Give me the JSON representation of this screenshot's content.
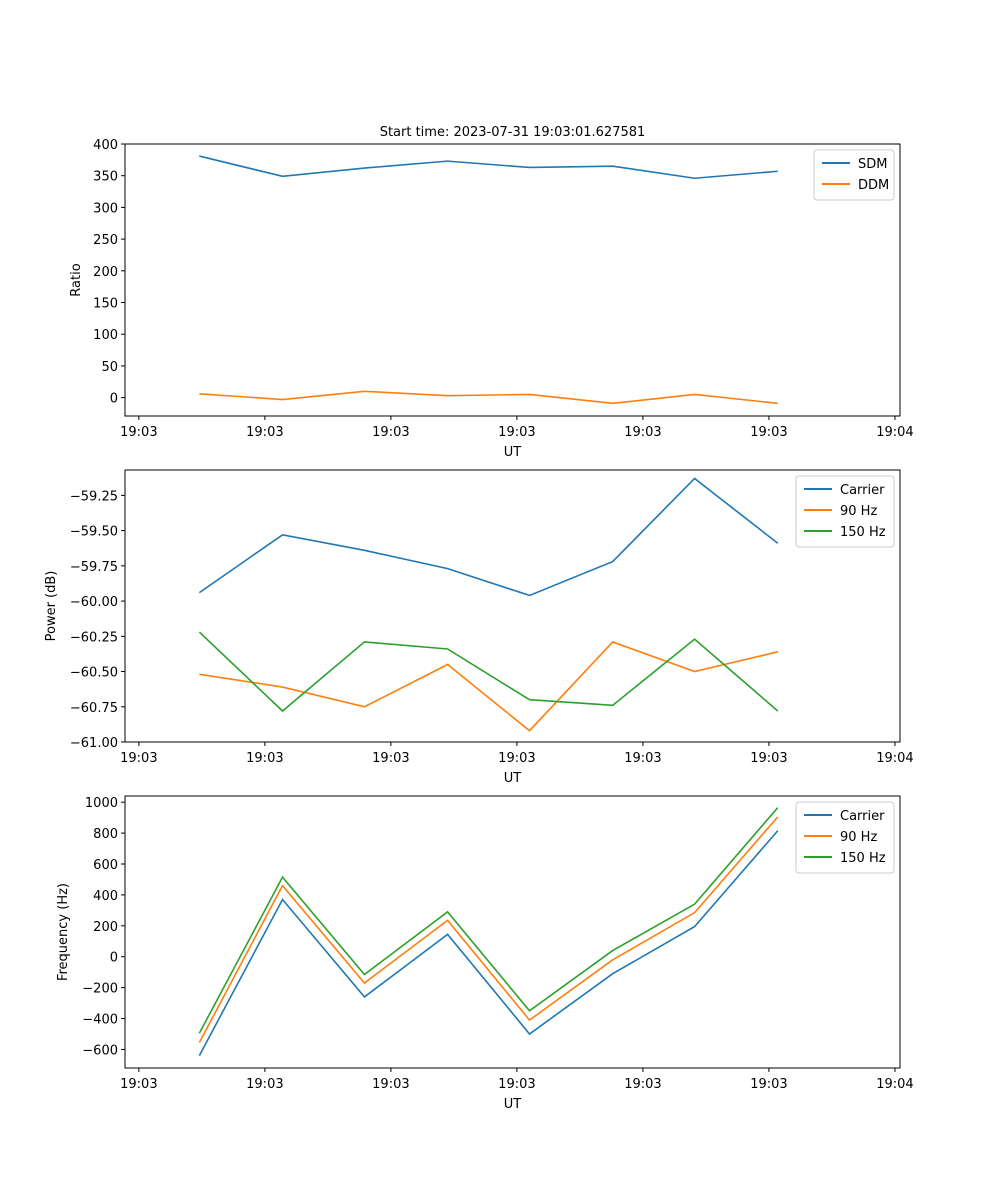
{
  "chart_data": [
    {
      "type": "line",
      "title": "Start time: 2023-07-31 19:03:01.627581",
      "xlabel": "UT",
      "ylabel": "Ratio",
      "x_seconds": [
        4.8,
        11.4,
        17.9,
        24.5,
        31.0,
        37.6,
        44.1,
        50.7
      ],
      "xlim": [
        -1.1,
        60.4
      ],
      "ylim": [
        -29,
        400
      ],
      "xticks": [
        0,
        10,
        20,
        30,
        40,
        50,
        60
      ],
      "xtick_labels": [
        "19:03",
        "19:03",
        "19:03",
        "19:03",
        "19:03",
        "19:03",
        "19:04"
      ],
      "yticks": [
        0,
        50,
        100,
        150,
        200,
        250,
        300,
        350,
        400
      ],
      "ytick_labels": [
        "0",
        "50",
        "100",
        "150",
        "200",
        "250",
        "300",
        "350",
        "400"
      ],
      "legend": "top-right",
      "series": [
        {
          "name": "SDM",
          "color": "#1f77b4",
          "values": [
            381,
            349,
            362,
            373,
            363,
            365,
            346,
            357
          ]
        },
        {
          "name": "DDM",
          "color": "#ff7f0e",
          "values": [
            6,
            -3,
            10,
            3,
            5,
            -9,
            5,
            -9
          ]
        }
      ]
    },
    {
      "type": "line",
      "title": "",
      "xlabel": "UT",
      "ylabel": "Power (dB)",
      "x_seconds": [
        4.8,
        11.4,
        17.9,
        24.5,
        31.0,
        37.6,
        44.1,
        50.7
      ],
      "xlim": [
        -1.1,
        60.4
      ],
      "ylim": [
        -61.0,
        -59.07
      ],
      "xticks": [
        0,
        10,
        20,
        30,
        40,
        50,
        60
      ],
      "xtick_labels": [
        "19:03",
        "19:03",
        "19:03",
        "19:03",
        "19:03",
        "19:03",
        "19:04"
      ],
      "yticks": [
        -61.0,
        -60.75,
        -60.5,
        -60.25,
        -60.0,
        -59.75,
        -59.5,
        -59.25
      ],
      "ytick_labels": [
        "−61.00",
        "−60.75",
        "−60.50",
        "−60.25",
        "−60.00",
        "−59.75",
        "−59.50",
        "−59.25"
      ],
      "legend": "top-right",
      "series": [
        {
          "name": "Carrier",
          "color": "#1f77b4",
          "values": [
            -59.94,
            -59.53,
            -59.64,
            -59.77,
            -59.96,
            -59.72,
            -59.13,
            -59.59
          ]
        },
        {
          "name": "90 Hz",
          "color": "#ff7f0e",
          "values": [
            -60.52,
            -60.61,
            -60.75,
            -60.45,
            -60.92,
            -60.29,
            -60.5,
            -60.36
          ]
        },
        {
          "name": "150 Hz",
          "color": "#2ca02c",
          "values": [
            -60.22,
            -60.78,
            -60.29,
            -60.34,
            -60.7,
            -60.74,
            -60.27,
            -60.78
          ]
        }
      ]
    },
    {
      "type": "line",
      "title": "",
      "xlabel": "UT",
      "ylabel": "Frequency (Hz)",
      "x_seconds": [
        4.8,
        11.4,
        17.9,
        24.5,
        31.0,
        37.6,
        44.1,
        50.7
      ],
      "xlim": [
        -1.1,
        60.4
      ],
      "ylim": [
        -720,
        1040
      ],
      "xticks": [
        0,
        10,
        20,
        30,
        40,
        50,
        60
      ],
      "xtick_labels": [
        "19:03",
        "19:03",
        "19:03",
        "19:03",
        "19:03",
        "19:03",
        "19:04"
      ],
      "yticks": [
        -600,
        -400,
        -200,
        0,
        200,
        400,
        600,
        800,
        1000
      ],
      "ytick_labels": [
        "−600",
        "−400",
        "−200",
        "0",
        "200",
        "400",
        "600",
        "800",
        "1000"
      ],
      "legend": "top-right",
      "series": [
        {
          "name": "Carrier",
          "color": "#1f77b4",
          "values": [
            -640,
            370,
            -260,
            145,
            -500,
            -110,
            195,
            815
          ]
        },
        {
          "name": "90 Hz",
          "color": "#ff7f0e",
          "values": [
            -555,
            460,
            -170,
            235,
            -410,
            -20,
            285,
            905
          ]
        },
        {
          "name": "150 Hz",
          "color": "#2ca02c",
          "values": [
            -495,
            515,
            -115,
            290,
            -350,
            40,
            340,
            965
          ]
        }
      ]
    }
  ]
}
